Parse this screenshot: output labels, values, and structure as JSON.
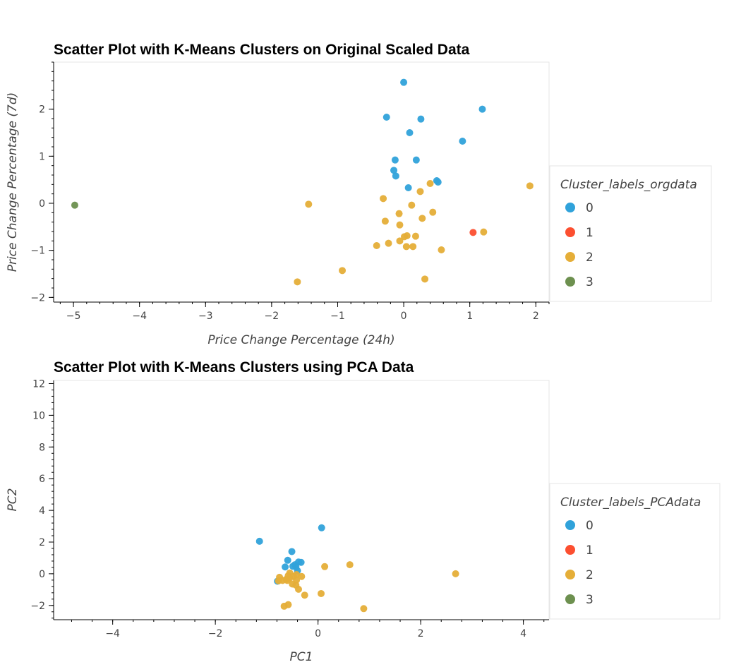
{
  "chart_data": [
    {
      "type": "scatter",
      "title": "Scatter Plot with K-Means Clusters on Original Scaled Data",
      "xlabel": "Price Change Percentage (24h)",
      "ylabel": "Price Change Percentage (7d)",
      "xlim": [
        -5.3,
        2.2
      ],
      "ylim": [
        -2.1,
        3.0
      ],
      "xticks": [
        -5,
        -4,
        -3,
        -2,
        -1,
        0,
        1,
        2
      ],
      "yticks": [
        -2,
        -1,
        0,
        1,
        2
      ],
      "grid": false,
      "legend": {
        "title": "Cluster_labels_orgdata",
        "placement": "right"
      },
      "series": [
        {
          "name": "0",
          "color": "#30a2da",
          "points": [
            [
              0.0,
              2.57
            ],
            [
              -0.26,
              1.83
            ],
            [
              0.26,
              1.79
            ],
            [
              1.19,
              2.0
            ],
            [
              0.09,
              1.5
            ],
            [
              0.89,
              1.32
            ],
            [
              -0.13,
              0.92
            ],
            [
              0.19,
              0.92
            ],
            [
              -0.15,
              0.7
            ],
            [
              -0.12,
              0.58
            ],
            [
              0.5,
              0.48
            ],
            [
              0.52,
              0.45
            ],
            [
              0.07,
              0.33
            ]
          ]
        },
        {
          "name": "1",
          "color": "#fc4f30",
          "points": [
            [
              1.05,
              -0.62
            ]
          ]
        },
        {
          "name": "2",
          "color": "#e5ae38",
          "points": [
            [
              1.91,
              0.37
            ],
            [
              0.4,
              0.42
            ],
            [
              0.25,
              0.25
            ],
            [
              -0.31,
              0.1
            ],
            [
              -1.44,
              -0.02
            ],
            [
              0.12,
              -0.04
            ],
            [
              0.44,
              -0.19
            ],
            [
              -0.07,
              -0.22
            ],
            [
              0.28,
              -0.32
            ],
            [
              -0.28,
              -0.38
            ],
            [
              -0.06,
              -0.46
            ],
            [
              1.21,
              -0.61
            ],
            [
              0.05,
              -0.69
            ],
            [
              0.01,
              -0.71
            ],
            [
              0.18,
              -0.7
            ],
            [
              -0.06,
              -0.8
            ],
            [
              -0.23,
              -0.85
            ],
            [
              0.04,
              -0.92
            ],
            [
              0.14,
              -0.92
            ],
            [
              -0.41,
              -0.9
            ],
            [
              0.57,
              -0.99
            ],
            [
              -0.93,
              -1.43
            ],
            [
              0.32,
              -1.61
            ],
            [
              -1.61,
              -1.67
            ]
          ]
        },
        {
          "name": "3",
          "color": "#6d904f",
          "points": [
            [
              -4.98,
              -0.04
            ]
          ]
        }
      ]
    },
    {
      "type": "scatter",
      "title": "Scatter Plot with K-Means Clusters using PCA Data",
      "xlabel": "PC1",
      "ylabel": "PC2",
      "xlim": [
        -5.15,
        4.5
      ],
      "ylim": [
        -2.9,
        12.2
      ],
      "xticks": [
        -4,
        -2,
        0,
        2,
        4
      ],
      "yticks": [
        -2,
        0,
        2,
        4,
        6,
        8,
        10,
        12
      ],
      "grid": false,
      "legend": {
        "title": "Cluster_labels_PCAdata",
        "placement": "right"
      },
      "series": [
        {
          "name": "0",
          "color": "#30a2da",
          "points": [
            [
              0.07,
              2.9
            ],
            [
              -1.14,
              2.05
            ],
            [
              -0.51,
              1.4
            ],
            [
              -0.59,
              0.85
            ],
            [
              -0.33,
              0.72
            ],
            [
              -0.38,
              0.74
            ],
            [
              -0.45,
              0.57
            ],
            [
              -0.49,
              0.47
            ],
            [
              -0.43,
              0.44
            ],
            [
              -0.64,
              0.43
            ],
            [
              -0.4,
              0.19
            ],
            [
              -0.79,
              -0.47
            ]
          ]
        },
        {
          "name": "1",
          "color": "#fc4f30",
          "points": []
        },
        {
          "name": "2",
          "color": "#e5ae38",
          "points": [
            [
              2.68,
              0.0
            ],
            [
              0.62,
              0.57
            ],
            [
              0.13,
              0.45
            ],
            [
              -0.55,
              0.05
            ],
            [
              -0.42,
              -0.05
            ],
            [
              -0.58,
              -0.12
            ],
            [
              -0.48,
              -0.17
            ],
            [
              -0.32,
              -0.17
            ],
            [
              -0.75,
              -0.22
            ],
            [
              -0.55,
              -0.26
            ],
            [
              -0.62,
              -0.35
            ],
            [
              -0.69,
              -0.42
            ],
            [
              -0.77,
              -0.45
            ],
            [
              -0.6,
              -0.42
            ],
            [
              -0.42,
              -0.4
            ],
            [
              -0.5,
              -0.65
            ],
            [
              -0.43,
              -0.72
            ],
            [
              -0.38,
              -0.98
            ],
            [
              0.06,
              -1.25
            ],
            [
              -0.26,
              -1.35
            ],
            [
              -0.58,
              -1.95
            ],
            [
              -0.66,
              -2.05
            ],
            [
              0.89,
              -2.2
            ]
          ]
        },
        {
          "name": "3",
          "color": "#6d904f",
          "points": []
        }
      ]
    }
  ]
}
